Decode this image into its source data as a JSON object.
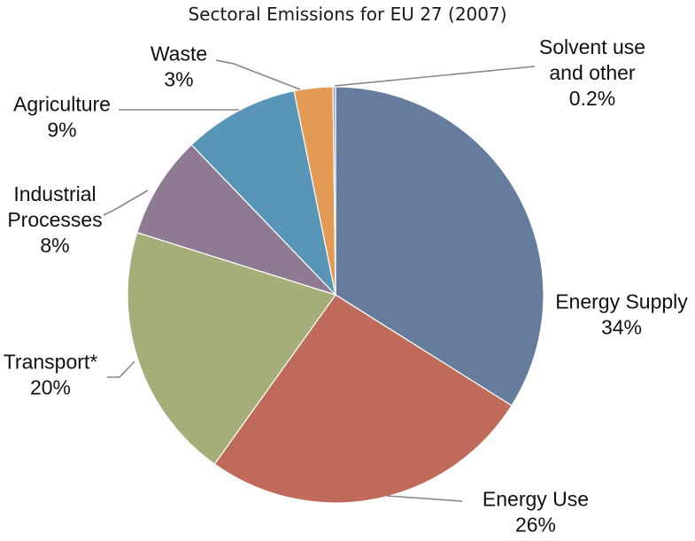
{
  "chart_data": {
    "type": "pie",
    "title": "Sectoral Emissions for EU 27 (2007)",
    "slices": [
      {
        "label": "Energy Supply",
        "value_label": "34%",
        "value": 34,
        "color": "#667c9c"
      },
      {
        "label": "Energy Use",
        "value_label": "26%",
        "value": 26,
        "color": "#c06b5a"
      },
      {
        "label": "Transport*",
        "value_label": "20%",
        "value": 20,
        "color": "#a5ae78"
      },
      {
        "label": "Industrial Processes",
        "value_label": "8%",
        "value": 8,
        "color": "#8f7a93"
      },
      {
        "label": "Agriculture",
        "value_label": "9%",
        "value": 9,
        "color": "#5995b7"
      },
      {
        "label": "Waste",
        "value_label": "3%",
        "value": 3,
        "color": "#e39a55"
      },
      {
        "label": "Solvent use and other",
        "value_label": "0.2%",
        "value": 0.2,
        "color": "#8aa0bd"
      }
    ]
  }
}
